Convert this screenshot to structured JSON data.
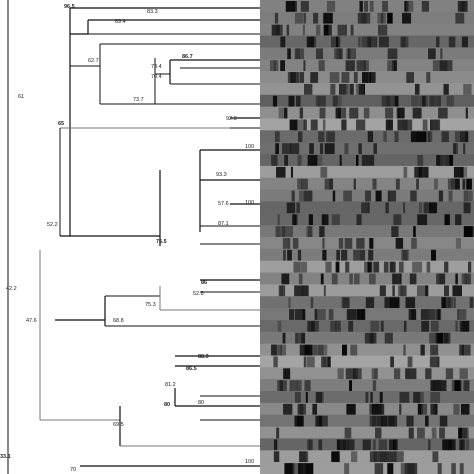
{
  "figure": {
    "type": "dendrogram-with-gel-fingerprints",
    "colors": {
      "background": "#ffffff",
      "branch": "#111111",
      "branch_light": "#777777",
      "gel_lane_base": "#8a8a8a",
      "band": "#121212"
    }
  },
  "dendrogram": {
    "node_labels": [
      {
        "id": "n1",
        "text": "96.5",
        "bold": true
      },
      {
        "id": "n2",
        "text": "83.3",
        "bold": false
      },
      {
        "id": "n3",
        "text": "69.4",
        "bold": false
      },
      {
        "id": "n4",
        "text": "62.7",
        "bold": false
      },
      {
        "id": "n5",
        "text": "86.7",
        "bold": true
      },
      {
        "id": "n6",
        "text": "73.4",
        "bold": false
      },
      {
        "id": "n7",
        "text": "70.4",
        "bold": false
      },
      {
        "id": "n8",
        "text": "73.7",
        "bold": false
      },
      {
        "id": "n9",
        "text": "92.3",
        "bold": false
      },
      {
        "id": "n10",
        "text": "65",
        "bold": true
      },
      {
        "id": "n11",
        "text": "61",
        "bold": false
      },
      {
        "id": "n12",
        "text": "100",
        "bold": false
      },
      {
        "id": "n13",
        "text": "93.3",
        "bold": false
      },
      {
        "id": "n14",
        "text": "57.6",
        "bold": false
      },
      {
        "id": "n15",
        "text": "100",
        "bold": false
      },
      {
        "id": "n16",
        "text": "87.1",
        "bold": false
      },
      {
        "id": "n17",
        "text": "75.5",
        "bold": true
      },
      {
        "id": "n18",
        "text": "52.2",
        "bold": false
      },
      {
        "id": "n19",
        "text": "42.2",
        "bold": false
      },
      {
        "id": "n20",
        "text": "86",
        "bold": true
      },
      {
        "id": "n21",
        "text": "52.8",
        "bold": false
      },
      {
        "id": "n22",
        "text": "75.3",
        "bold": false
      },
      {
        "id": "n23",
        "text": "68.8",
        "bold": false
      },
      {
        "id": "n24",
        "text": "47.6",
        "bold": false
      },
      {
        "id": "n25",
        "text": "88.9",
        "bold": true
      },
      {
        "id": "n26",
        "text": "86.5",
        "bold": true
      },
      {
        "id": "n27",
        "text": "81.2",
        "bold": false
      },
      {
        "id": "n28",
        "text": "80",
        "bold": true
      },
      {
        "id": "n29",
        "text": "80",
        "bold": false
      },
      {
        "id": "n30",
        "text": "69.5",
        "bold": false
      },
      {
        "id": "n31",
        "text": "33.1",
        "bold": true
      },
      {
        "id": "n32",
        "text": "100",
        "bold": false
      },
      {
        "id": "n33",
        "text": "70",
        "bold": false
      }
    ]
  }
}
